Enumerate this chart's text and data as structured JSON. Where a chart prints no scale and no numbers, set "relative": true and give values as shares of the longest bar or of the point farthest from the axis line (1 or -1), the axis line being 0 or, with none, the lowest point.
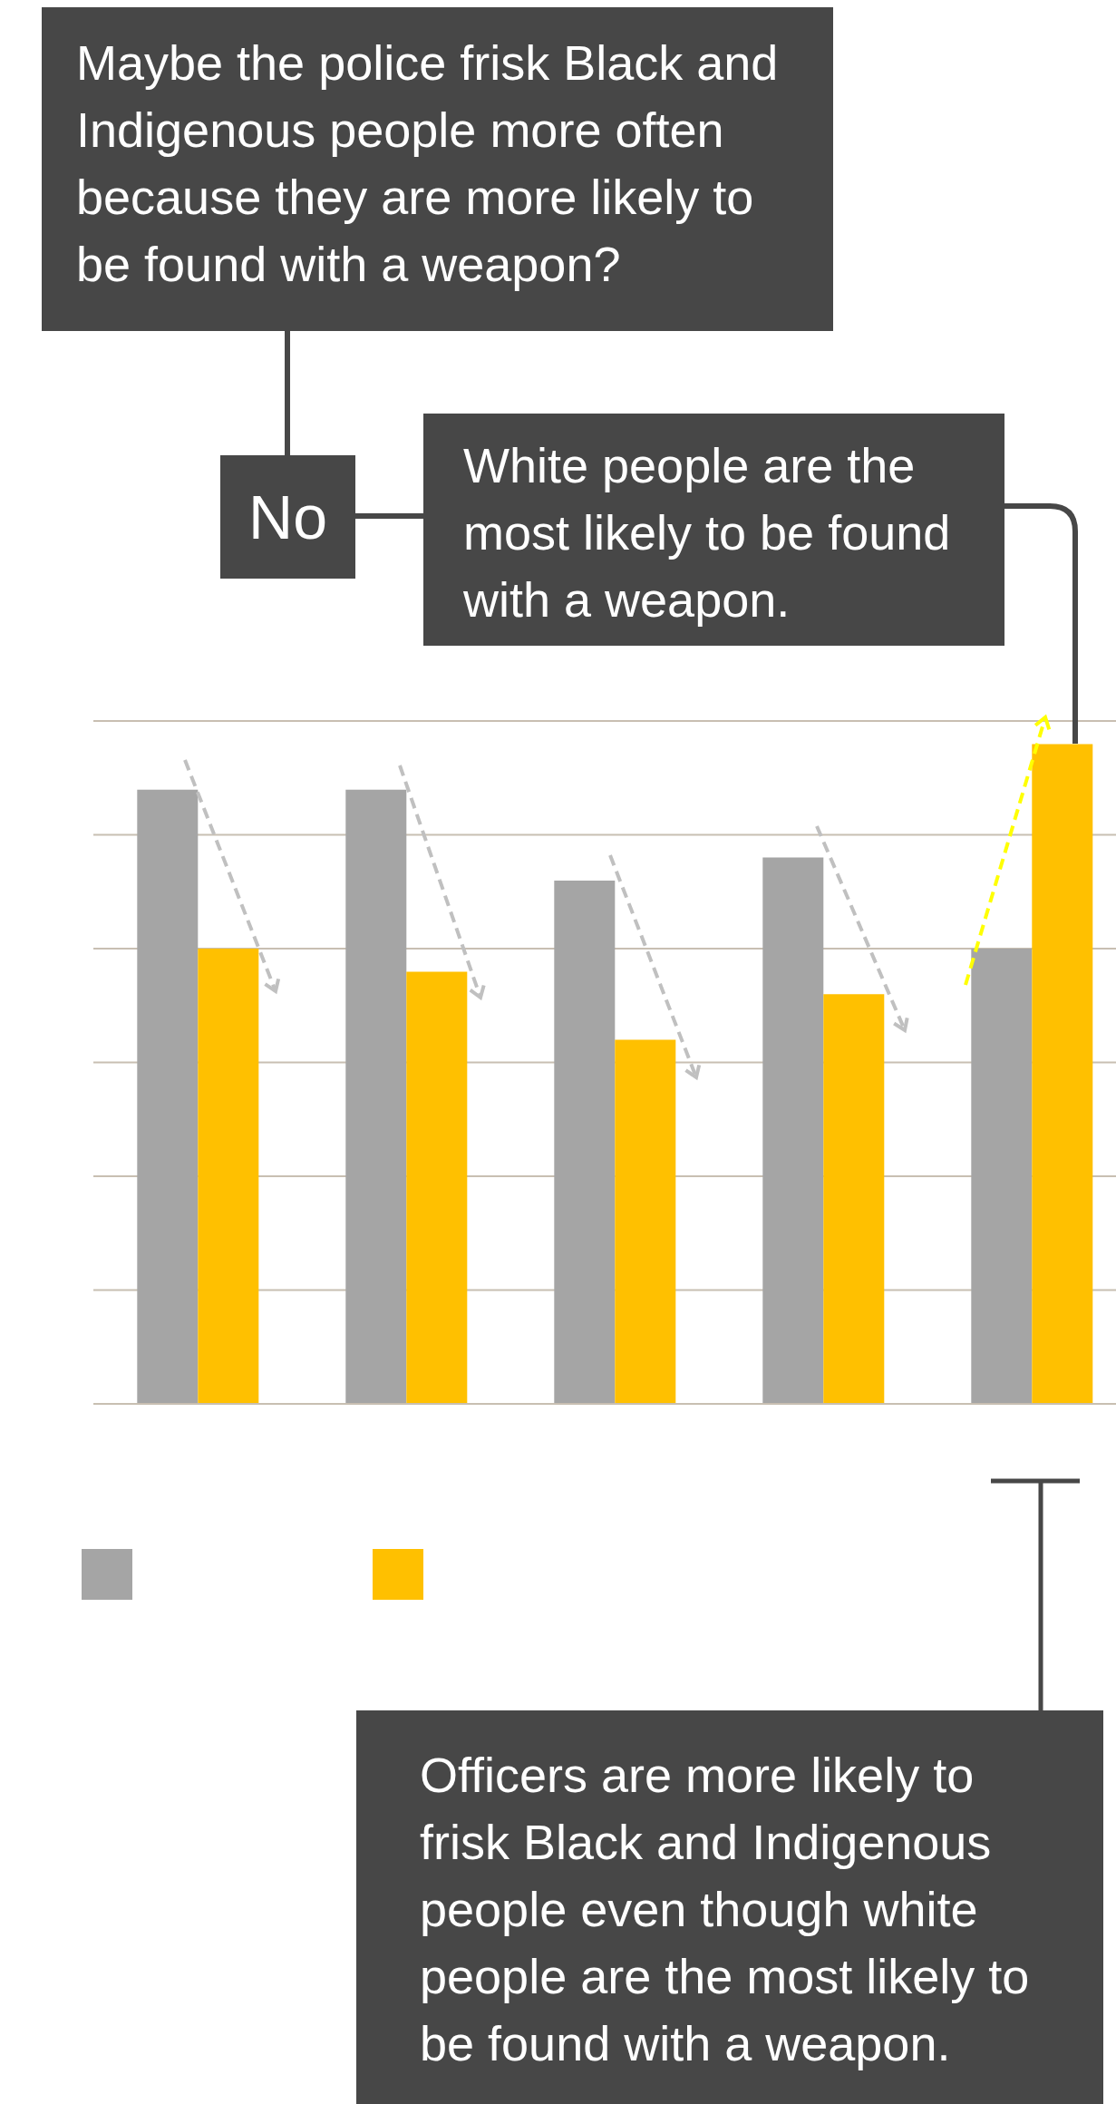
{
  "chart_data": {
    "type": "bar",
    "relative": true,
    "categories": [
      null,
      null,
      null,
      null,
      null
    ],
    "series": [
      {
        "color": "#a5a5a5",
        "values": [
          0.931,
          0.931,
          0.793,
          0.828,
          0.69
        ]
      },
      {
        "color": "#ffc000",
        "values": [
          0.69,
          0.655,
          0.552,
          0.621,
          1
        ]
      }
    ],
    "grid": "y",
    "annotations": [
      "Maybe the police frisk Black and Indigenous people more often because they are more likely to be found with a weapon?",
      "No",
      "White people are the most likely to be found with a weapon.",
      "Officers are more likely to frisk Black and Indigenous people even though white people are the most likely to be found with a weapon."
    ]
  }
}
